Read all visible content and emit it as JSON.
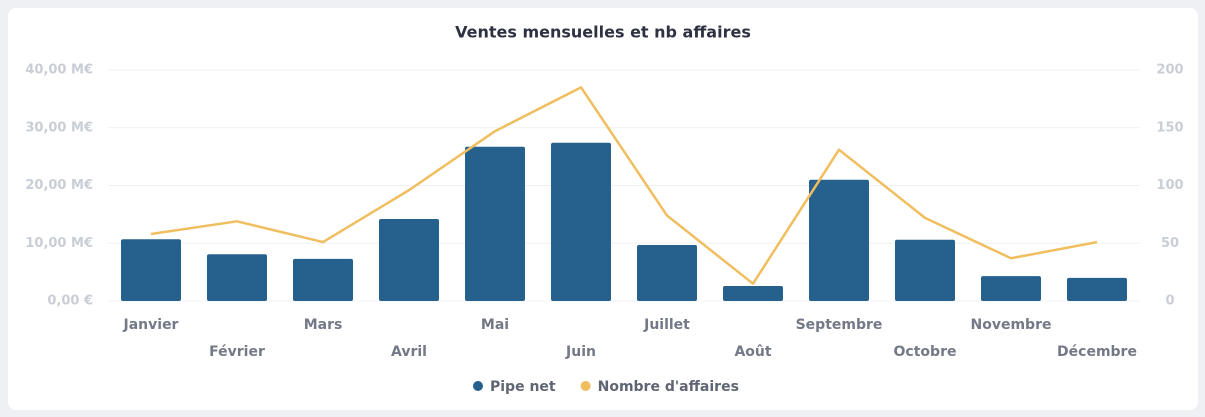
{
  "chart_data": {
    "type": "bar",
    "title": "Ventes mensuelles et nb affaires",
    "categories": [
      "Janvier",
      "Février",
      "Mars",
      "Avril",
      "Mai",
      "Juin",
      "Juillet",
      "Août",
      "Septembre",
      "Octobre",
      "Novembre",
      "Décembre"
    ],
    "series": [
      {
        "name": "Pipe net",
        "color": "#26608c",
        "type": "bar",
        "values": [
          10.7,
          8.1,
          7.3,
          14.2,
          26.7,
          27.4,
          9.7,
          2.6,
          21.0,
          10.6,
          4.3,
          4.0
        ]
      },
      {
        "name": "Nombre d'affaires",
        "color": "#f0be5f",
        "type": "line",
        "axis": "y2",
        "values": [
          58,
          69,
          51,
          96,
          147,
          185,
          74,
          15,
          131,
          72,
          37,
          51
        ]
      }
    ],
    "ylim": [
      0,
      40
    ],
    "yticks": [
      {
        "value": 0,
        "label": "0,00 €"
      },
      {
        "value": 10,
        "label": "10,00 M€"
      },
      {
        "value": 20,
        "label": "20,00 M€"
      },
      {
        "value": 30,
        "label": "30,00 M€"
      },
      {
        "value": 40,
        "label": "40,00 M€"
      }
    ],
    "y2lim": [
      0,
      200
    ],
    "y2ticks": [
      0,
      50,
      100,
      150,
      200
    ],
    "grid": true,
    "legend": "bottom"
  }
}
